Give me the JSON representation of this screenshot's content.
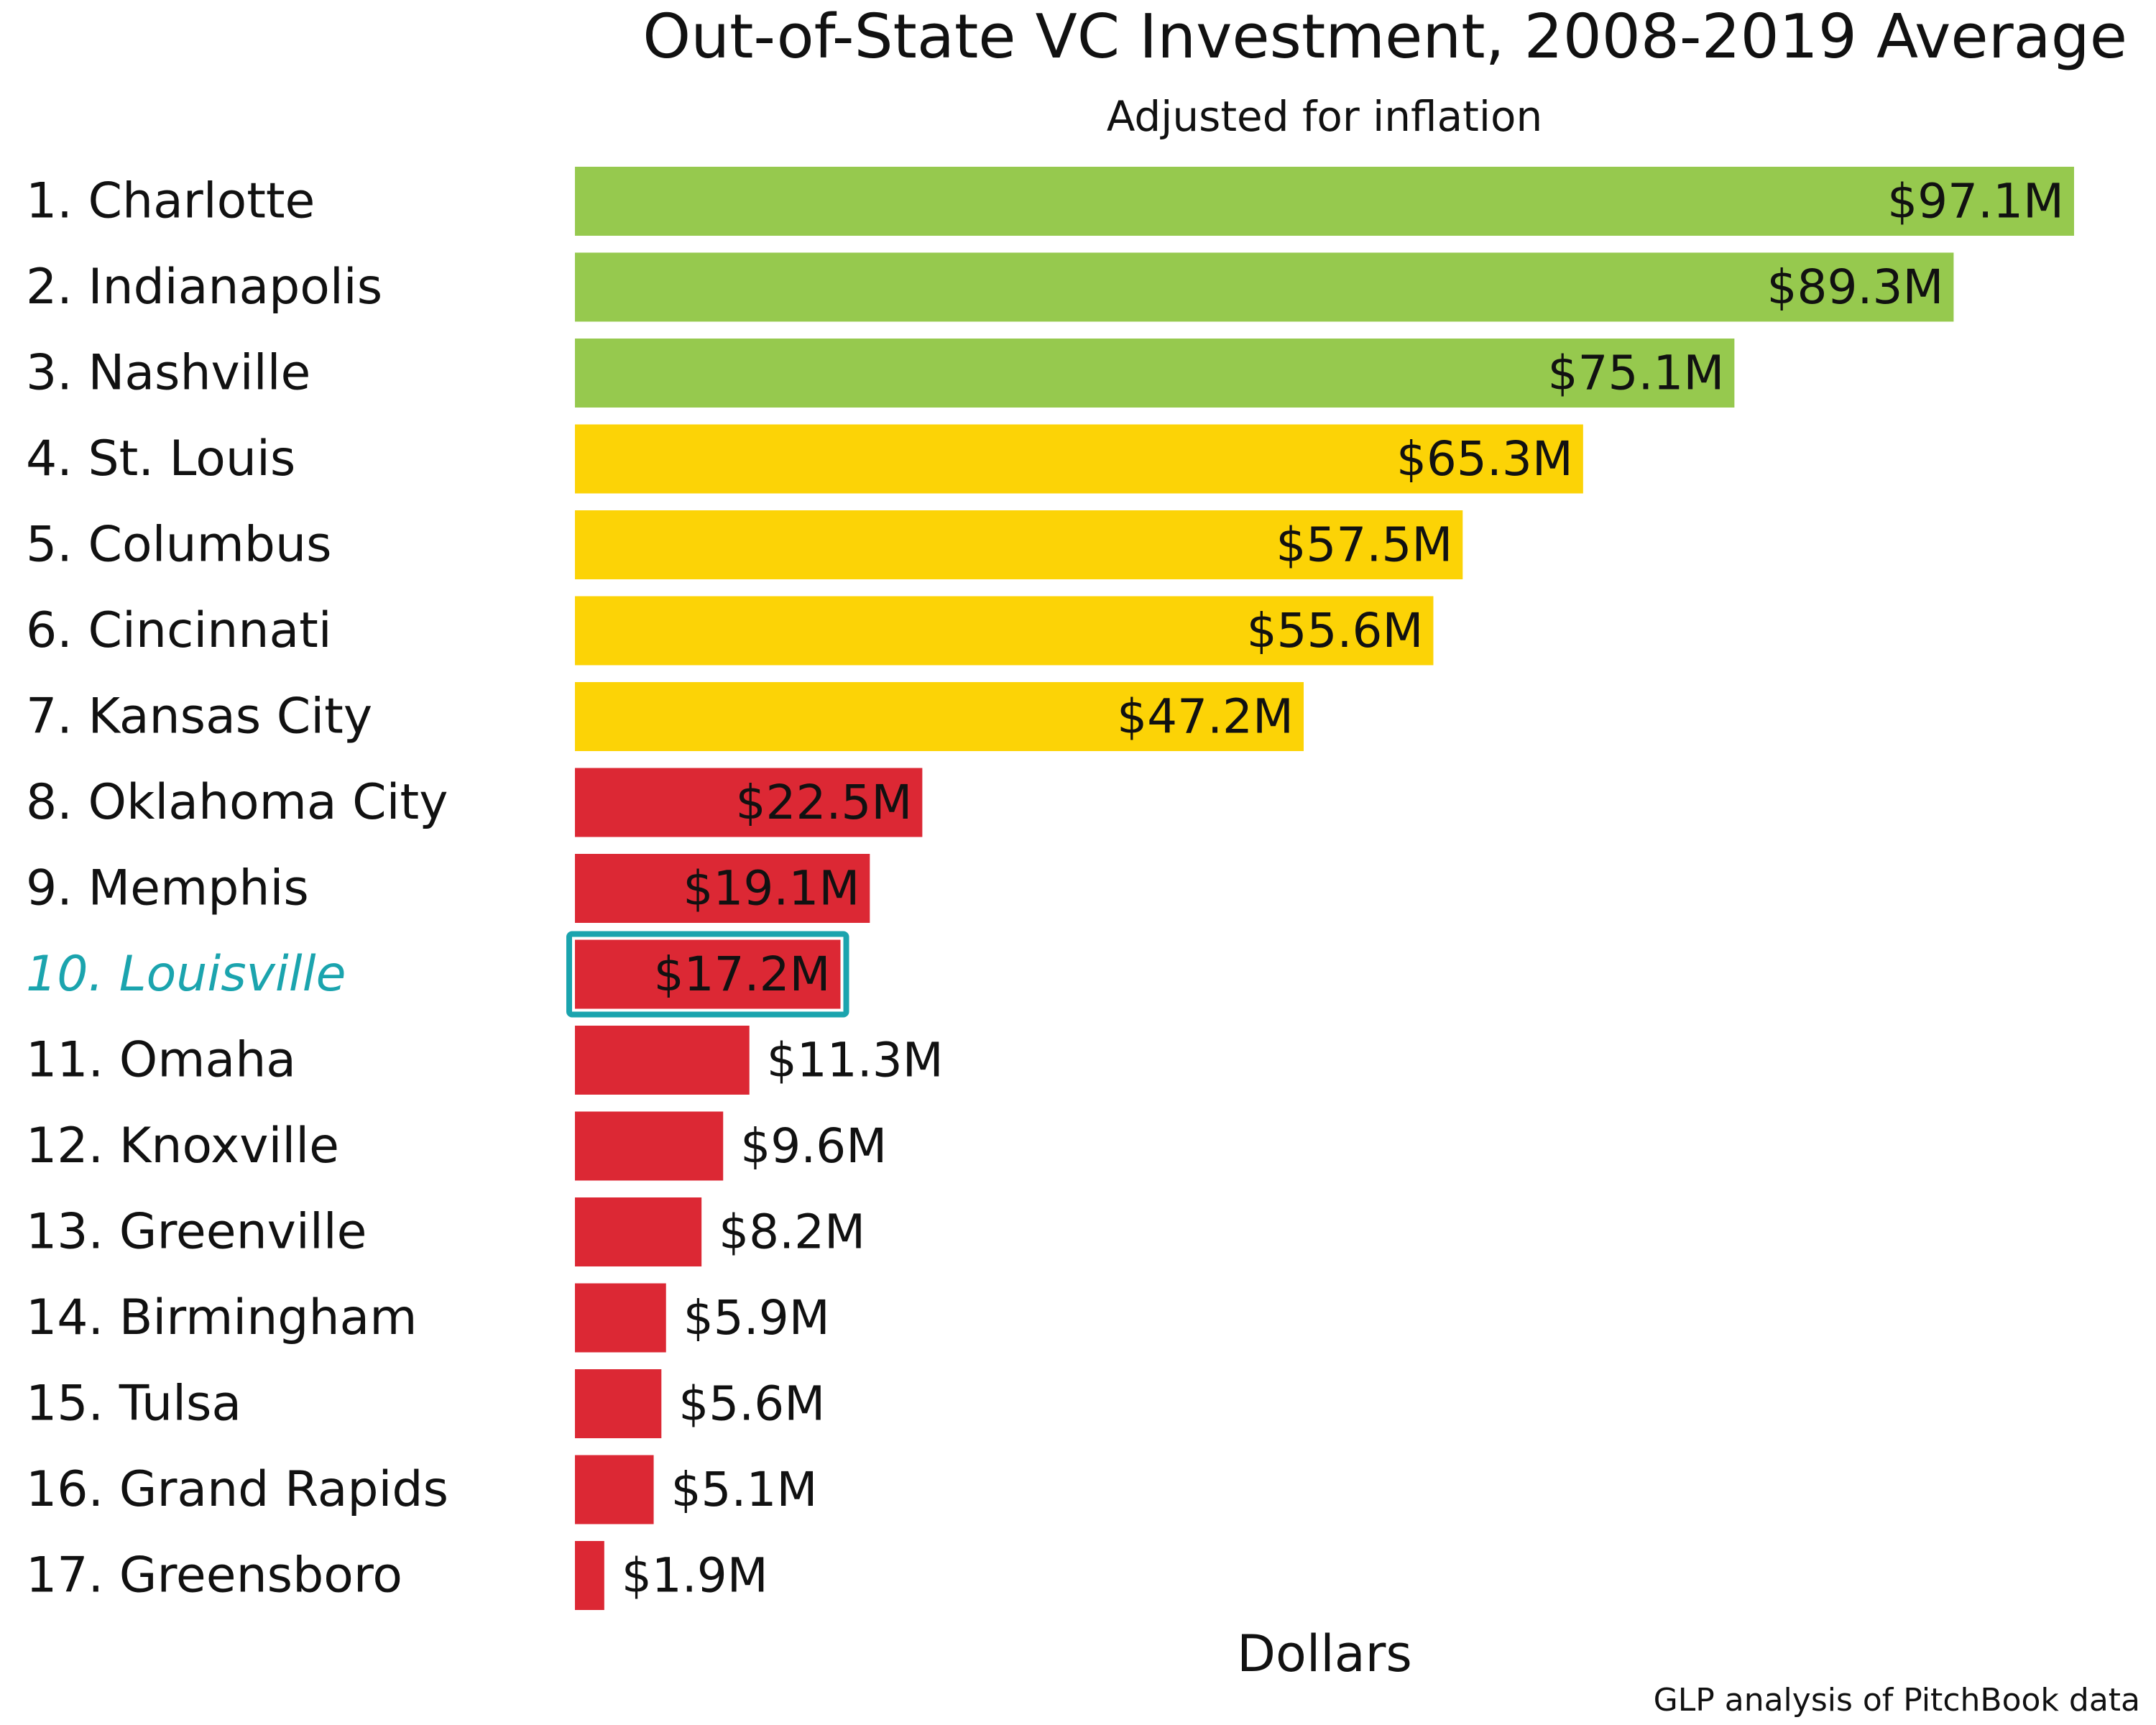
{
  "chart_data": {
    "type": "bar",
    "orientation": "horizontal",
    "title": "Out-of-State VC Investment, 2008-2019 Average",
    "subtitle": "Adjusted for inflation",
    "xlabel": "Dollars",
    "source": "GLP analysis of PitchBook data",
    "xlim": [
      0,
      97.1
    ],
    "grid": false,
    "legend": "none",
    "categories": [
      "1. Charlotte",
      "2. Indianapolis",
      "3. Nashville",
      "4. St. Louis",
      "5. Columbus",
      "6. Cincinnati",
      "7. Kansas City",
      "8. Oklahoma City",
      "9. Memphis",
      "10. Louisville",
      "11. Omaha",
      "12. Knoxville",
      "13. Greenville",
      "14. Birmingham",
      "15. Tulsa",
      "16. Grand Rapids",
      "17. Greensboro"
    ],
    "values": [
      97.1,
      89.3,
      75.1,
      65.3,
      57.5,
      55.6,
      47.2,
      22.5,
      19.1,
      17.2,
      11.3,
      9.6,
      8.2,
      5.9,
      5.6,
      5.1,
      1.9
    ],
    "value_labels": [
      "$97.1M",
      "$89.3M",
      "$75.1M",
      "$65.3M",
      "$57.5M",
      "$55.6M",
      "$47.2M",
      "$22.5M",
      "$19.1M",
      "$17.2M",
      "$11.3M",
      "$9.6M",
      "$8.2M",
      "$5.9M",
      "$5.6M",
      "$5.1M",
      "$1.9M"
    ],
    "tiers": [
      "green",
      "green",
      "green",
      "yellow",
      "yellow",
      "yellow",
      "yellow",
      "red",
      "red",
      "red",
      "red",
      "red",
      "red",
      "red",
      "red",
      "red",
      "red"
    ],
    "colors": {
      "green": "#96c94e",
      "yellow": "#fcd306",
      "red": "#dc2834",
      "highlight": "#1ba4ae"
    },
    "highlight": "10. Louisville"
  }
}
